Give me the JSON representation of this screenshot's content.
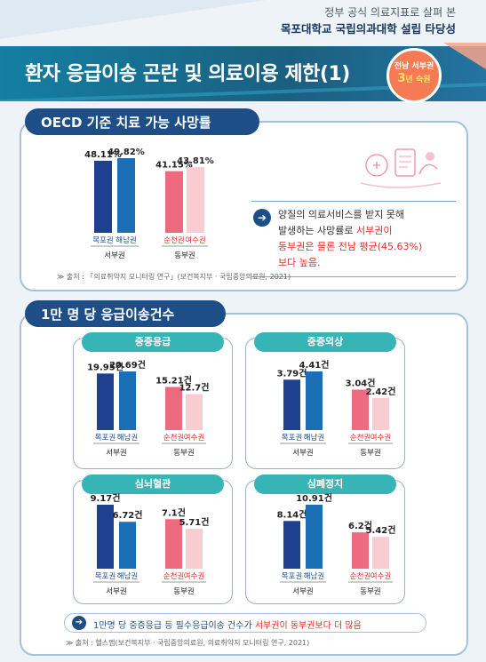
{
  "header": {
    "line1": "정부 공식 의료지표로 살펴 본",
    "line2": "목포대학교 국립의과대학 설립 타당성"
  },
  "banner": {
    "title": "환자 응급이송 곤란 및 의료이용 제한(1)",
    "badge_line1": "전남 서부권",
    "badge_num": "3",
    "badge_line2": "년 숙원"
  },
  "section1": {
    "title": "OECD 기준 치료 가능 사망률",
    "callout_line1": "양질의 의료서비스를 받지 못해",
    "callout_line2a": "발생하는 사망률로 ",
    "callout_line2b": "서부권이",
    "callout_line3": "동부권은 물론 전남 평균(45.63%)",
    "callout_line4": "보다 높음.",
    "source": "출처 : 「의료취약지 모니터링 연구」(보건복지부 · 국립중앙의료원, 2021)"
  },
  "section2": {
    "title": "1만 명 당 응급이송건수",
    "note_a": "1만명 당 중증응급 등 필수응급이송 건수가 ",
    "note_b": "서부권이 동부권보다 더 많음",
    "source": "출처 : 헬스맵(보건복지부 · 국립중앙의료원, 의료취약지 모니터링 연구, 2021)"
  },
  "colors": {
    "west_dark": "#1f3f8f",
    "west_mid": "#1c6fb5",
    "east_dark": "#ee6a7e",
    "east_light": "#f8cdd1",
    "navy": "#1d4e87",
    "teal": "#37b4b6"
  },
  "chart_data": [
    {
      "type": "bar",
      "title": "OECD 기준 치료 가능 사망률",
      "categories": [
        "목포권",
        "해남권",
        "순천권",
        "여수권"
      ],
      "groups": [
        "서부권",
        "서부권",
        "동부권",
        "동부권"
      ],
      "values": [
        48.11,
        49.82,
        41.15,
        43.81
      ],
      "labels": [
        "48.11%",
        "49.82%",
        "41.15%",
        "43.81%"
      ]
    },
    {
      "type": "bar",
      "title": "중증응급",
      "categories": [
        "목포권",
        "해남권",
        "순천권",
        "여수권"
      ],
      "groups": [
        "서부권",
        "서부권",
        "동부권",
        "동부권"
      ],
      "values": [
        19.95,
        20.69,
        15.21,
        12.7
      ],
      "labels": [
        "19.95건",
        "20.69건",
        "15.21건",
        "12.7건"
      ]
    },
    {
      "type": "bar",
      "title": "중증외상",
      "categories": [
        "목포권",
        "해남권",
        "순천권",
        "여수권"
      ],
      "groups": [
        "서부권",
        "서부권",
        "동부권",
        "동부권"
      ],
      "values": [
        3.79,
        4.41,
        3.04,
        2.42
      ],
      "labels": [
        "3.79건",
        "4.41건",
        "3.04건",
        "2.42건"
      ]
    },
    {
      "type": "bar",
      "title": "심뇌혈관",
      "categories": [
        "목포권",
        "해남권",
        "순천권",
        "여수권"
      ],
      "groups": [
        "서부권",
        "서부권",
        "동부권",
        "동부권"
      ],
      "values": [
        9.17,
        6.72,
        7.1,
        5.71
      ],
      "labels": [
        "9.17건",
        "6.72건",
        "7.1건",
        "5.71건"
      ]
    },
    {
      "type": "bar",
      "title": "심폐정지",
      "categories": [
        "목포권",
        "해남권",
        "순천권",
        "여수권"
      ],
      "groups": [
        "서부권",
        "서부권",
        "동부권",
        "동부권"
      ],
      "values": [
        8.14,
        10.91,
        6.2,
        5.42
      ],
      "labels": [
        "8.14건",
        "10.91건",
        "6.2건",
        "5.42건"
      ]
    }
  ]
}
